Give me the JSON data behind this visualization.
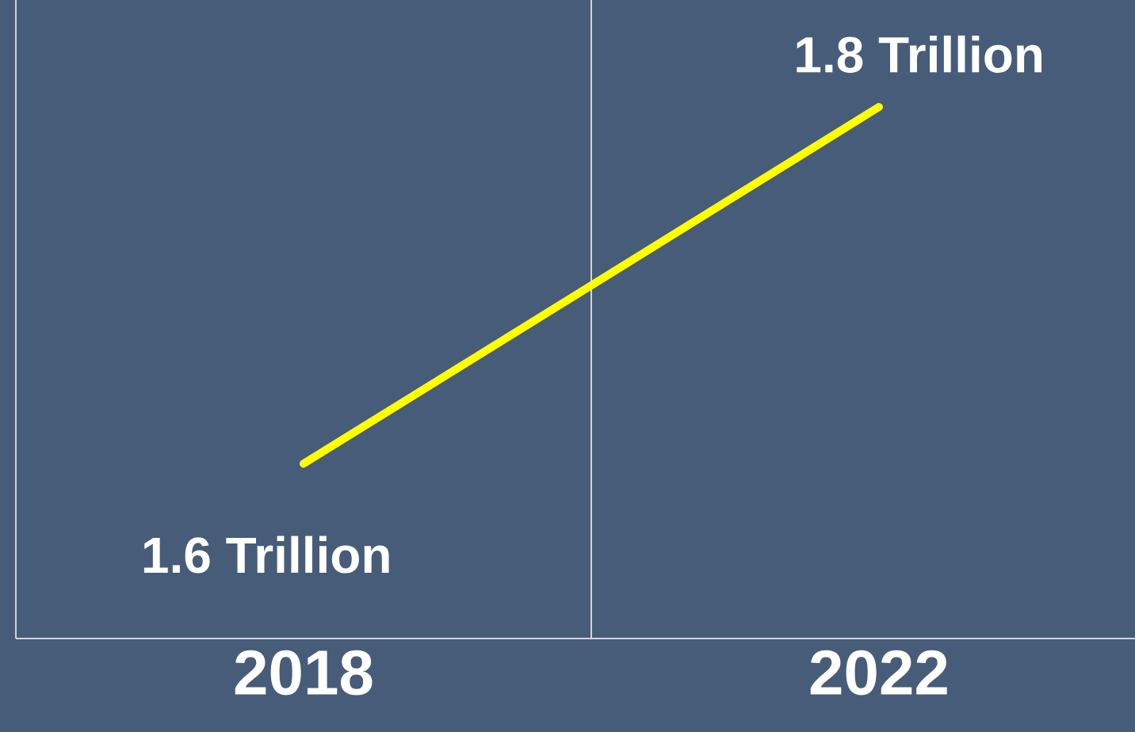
{
  "chart_data": {
    "type": "line",
    "categories": [
      "2018",
      "2022"
    ],
    "series": [
      {
        "color": "#ffff00",
        "values": [
          1.6,
          1.8
        ],
        "value_labels": [
          "1.6 Trillion",
          "1.8 Trillion"
        ]
      }
    ],
    "tick_labels": "x",
    "marker": "none",
    "line_style": "solid"
  }
}
